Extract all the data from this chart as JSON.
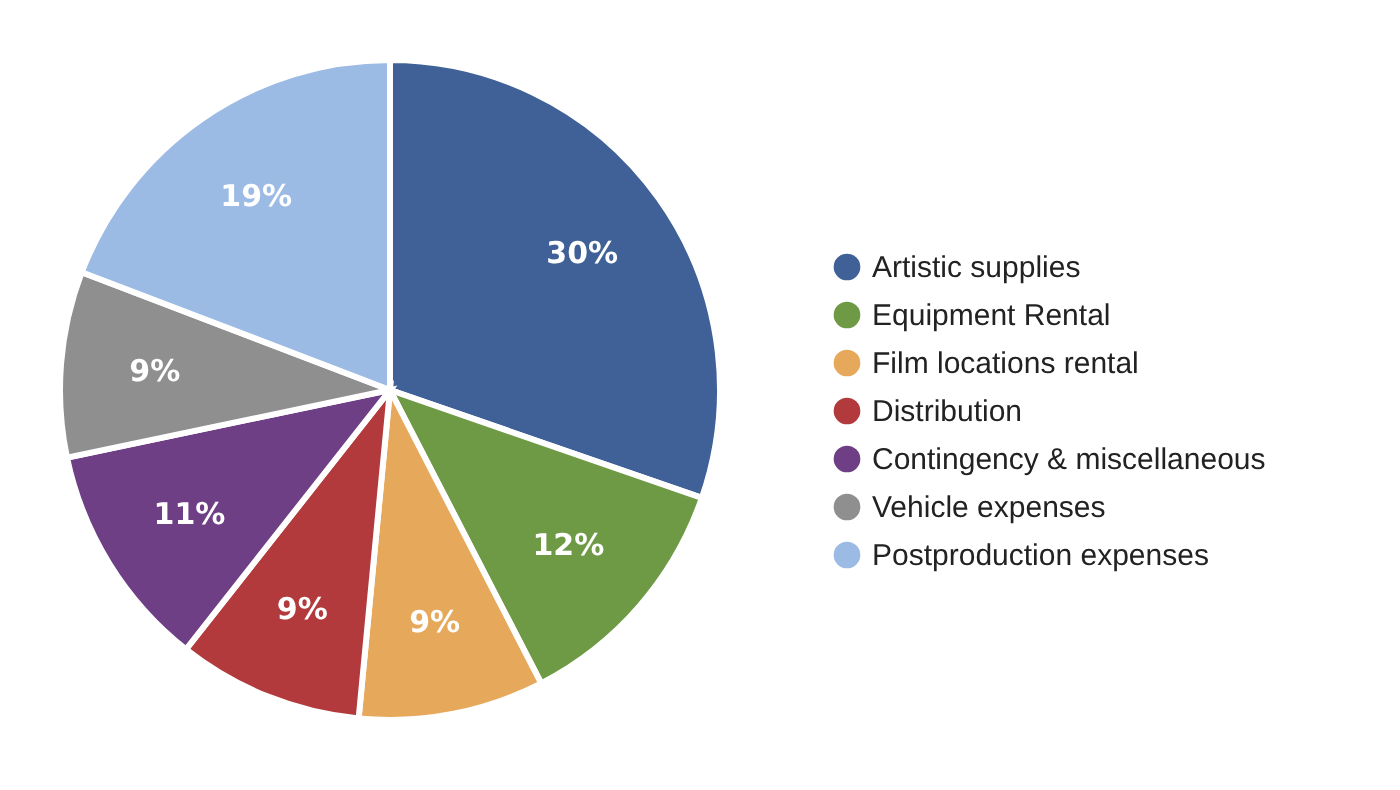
{
  "chart_data": {
    "type": "pie",
    "categories": [
      "Artistic supplies",
      "Equipment Rental",
      "Film locations rental",
      "Distribution",
      "Contingency & miscellaneous",
      "Vehicle expenses",
      "Postproduction expenses"
    ],
    "values": [
      30,
      12,
      9,
      9,
      11,
      9,
      19
    ],
    "value_labels": [
      "30%",
      "12%",
      "9%",
      "9%",
      "11%",
      "9%",
      "19%"
    ],
    "colors": [
      "#3f6197",
      "#6e9a46",
      "#e6a85a",
      "#b33a3c",
      "#6f3f86",
      "#8f8f8f",
      "#9bbbe4"
    ],
    "legend": "right"
  }
}
